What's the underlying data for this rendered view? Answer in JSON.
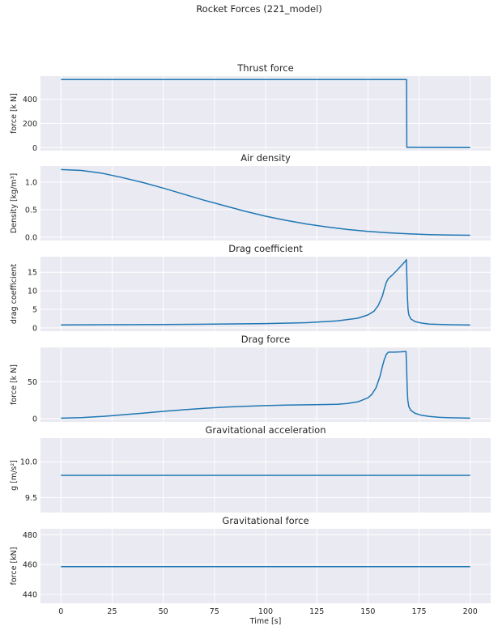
{
  "suptitle": "Rocket Forces (221_model)",
  "xlabel": "Time [s]",
  "xticks": [
    0,
    25,
    50,
    75,
    100,
    125,
    150,
    175,
    200
  ],
  "xlim": [
    -10,
    210
  ],
  "chart_data": [
    {
      "type": "line",
      "title": "Thrust force",
      "xlabel": "",
      "ylabel": "force [k N]",
      "ylim": [
        -25,
        590
      ],
      "yticks": [
        0,
        200,
        400
      ],
      "x": [
        0,
        168.9,
        169,
        200
      ],
      "values": [
        562,
        562,
        2,
        0
      ]
    },
    {
      "type": "line",
      "title": "Air density",
      "xlabel": "",
      "ylabel": "Density [kg/m³]",
      "ylim": [
        -0.06,
        1.29
      ],
      "yticks": [
        0.0,
        0.5,
        1.0
      ],
      "x": [
        0,
        10,
        20,
        30,
        40,
        50,
        60,
        70,
        80,
        90,
        100,
        110,
        120,
        130,
        140,
        150,
        160,
        170,
        180,
        190,
        200
      ],
      "values": [
        1.225,
        1.21,
        1.16,
        1.08,
        0.99,
        0.89,
        0.78,
        0.67,
        0.57,
        0.47,
        0.38,
        0.305,
        0.24,
        0.185,
        0.14,
        0.105,
        0.08,
        0.06,
        0.047,
        0.04,
        0.036
      ]
    },
    {
      "type": "line",
      "title": "Drag coefficient",
      "xlabel": "",
      "ylabel": "drag coefficient",
      "ylim": [
        -0.9,
        19.2
      ],
      "yticks": [
        0,
        5,
        10,
        15
      ],
      "x": [
        0,
        25,
        50,
        75,
        100,
        120,
        135,
        145,
        150,
        153,
        155,
        157,
        158,
        159,
        160,
        162,
        164,
        166,
        168,
        168.8,
        169,
        169.3,
        169.6,
        170,
        171,
        173,
        176,
        180,
        190,
        200
      ],
      "values": [
        0.8,
        0.85,
        0.9,
        1.0,
        1.15,
        1.4,
        1.9,
        2.6,
        3.5,
        4.5,
        6.0,
        8.5,
        10.5,
        12.3,
        13.3,
        14.3,
        15.4,
        16.6,
        17.8,
        18.4,
        14.0,
        8.5,
        5.0,
        3.5,
        2.4,
        1.7,
        1.3,
        1.0,
        0.85,
        0.75
      ]
    },
    {
      "type": "line",
      "title": "Drag force",
      "xlabel": "",
      "ylabel": "force [k N]",
      "ylim": [
        -4.6,
        96.5
      ],
      "yticks": [
        0,
        50
      ],
      "x": [
        0,
        10,
        20,
        30,
        40,
        50,
        60,
        70,
        80,
        90,
        100,
        110,
        120,
        130,
        135,
        140,
        145,
        150,
        152,
        154,
        156,
        157,
        158,
        159,
        160,
        163,
        166,
        168.6,
        168.9,
        169.2,
        169.5,
        170,
        171,
        173,
        176,
        180,
        185,
        190,
        200
      ],
      "values": [
        0.5,
        1.2,
        2.8,
        5.0,
        7.3,
        9.7,
        11.9,
        13.9,
        15.4,
        16.5,
        17.5,
        18.2,
        18.6,
        19.0,
        19.4,
        20.3,
        22.5,
        28,
        33,
        42,
        58,
        70,
        80,
        87,
        90,
        90,
        90.5,
        91,
        70,
        40,
        25,
        16,
        11,
        7,
        4.5,
        2.8,
        1.6,
        1.0,
        0.5
      ]
    },
    {
      "type": "line",
      "title": "Gravitational acceleration",
      "xlabel": "",
      "ylabel": "g   [m/s²]",
      "ylim": [
        9.29,
        10.33
      ],
      "yticks": [
        9.5,
        10.0
      ],
      "x": [
        0,
        200
      ],
      "values": [
        9.81,
        9.81
      ]
    },
    {
      "type": "line",
      "title": "Gravitational force",
      "xlabel": "Time [s]",
      "ylabel": "force   [kN]",
      "ylim": [
        434,
        484
      ],
      "yticks": [
        440,
        460,
        480
      ],
      "x": [
        0,
        200
      ],
      "values": [
        458.6,
        458.6
      ]
    }
  ]
}
